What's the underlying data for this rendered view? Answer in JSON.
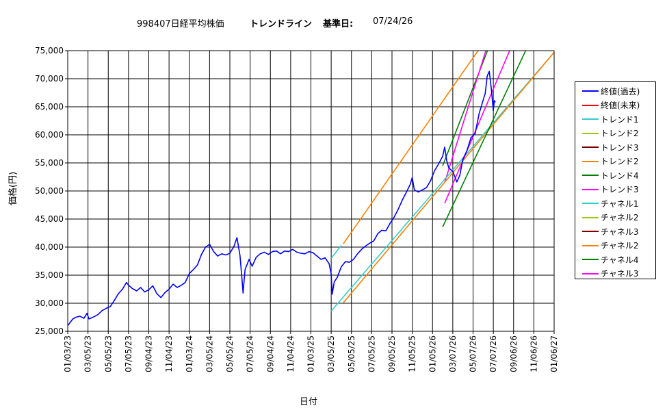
{
  "title": {
    "code_name": "998407日経平均株価",
    "subtitle": "トレンドライン",
    "base_label": "基準日:",
    "base_date": "07/24/26"
  },
  "chart_data": {
    "type": "line",
    "xlabel": "日付",
    "ylabel": "価格(円)",
    "ylim": [
      25000,
      75000
    ],
    "ytick_step": 5000,
    "y_tick_labels": [
      "25,000",
      "30,000",
      "35,000",
      "40,000",
      "45,000",
      "50,000",
      "55,000",
      "60,000",
      "65,000",
      "70,000",
      "75,000"
    ],
    "x_tick_labels": [
      "01/03/23",
      "03/05/23",
      "05/05/23",
      "07/05/23",
      "09/04/23",
      "11/04/23",
      "01/03/24",
      "03/05/24",
      "05/05/24",
      "07/05/24",
      "09/04/24",
      "11/04/24",
      "01/03/25",
      "03/05/25",
      "05/05/25",
      "07/05/25",
      "09/05/25",
      "11/05/25",
      "01/05/26",
      "03/07/26",
      "05/07/26",
      "07/07/26",
      "09/06/26",
      "11/06/26",
      "01/06/27"
    ],
    "grid": true,
    "legend_position": "right",
    "series": [
      {
        "name": "終値(過去)",
        "color": "#0000ff",
        "points": [
          [
            0,
            26000
          ],
          [
            0.1,
            26500
          ],
          [
            0.25,
            27200
          ],
          [
            0.4,
            27500
          ],
          [
            0.6,
            27700
          ],
          [
            0.8,
            27300
          ],
          [
            0.95,
            28200
          ],
          [
            1.05,
            27200
          ],
          [
            1.3,
            27600
          ],
          [
            1.5,
            28000
          ],
          [
            1.7,
            28700
          ],
          [
            1.9,
            29100
          ],
          [
            2.1,
            29400
          ],
          [
            2.3,
            30500
          ],
          [
            2.5,
            31700
          ],
          [
            2.7,
            32500
          ],
          [
            2.9,
            33700
          ],
          [
            3.0,
            33200
          ],
          [
            3.2,
            32600
          ],
          [
            3.4,
            32200
          ],
          [
            3.6,
            32800
          ],
          [
            3.8,
            32000
          ],
          [
            4.0,
            32400
          ],
          [
            4.2,
            33100
          ],
          [
            4.4,
            31700
          ],
          [
            4.6,
            31000
          ],
          [
            4.8,
            31900
          ],
          [
            5.0,
            32500
          ],
          [
            5.2,
            33400
          ],
          [
            5.4,
            32800
          ],
          [
            5.6,
            33200
          ],
          [
            5.8,
            33700
          ],
          [
            6.0,
            35300
          ],
          [
            6.2,
            36000
          ],
          [
            6.4,
            36800
          ],
          [
            6.6,
            38700
          ],
          [
            6.8,
            40000
          ],
          [
            7.0,
            40500
          ],
          [
            7.2,
            39200
          ],
          [
            7.4,
            38400
          ],
          [
            7.6,
            38800
          ],
          [
            7.8,
            38600
          ],
          [
            8.0,
            38900
          ],
          [
            8.2,
            40100
          ],
          [
            8.35,
            41700
          ],
          [
            8.5,
            38500
          ],
          [
            8.6,
            34200
          ],
          [
            8.65,
            31800
          ],
          [
            8.75,
            36000
          ],
          [
            8.95,
            37800
          ],
          [
            9.1,
            36600
          ],
          [
            9.3,
            38200
          ],
          [
            9.5,
            38800
          ],
          [
            9.7,
            39100
          ],
          [
            9.9,
            38700
          ],
          [
            10.1,
            39200
          ],
          [
            10.3,
            39300
          ],
          [
            10.5,
            38800
          ],
          [
            10.7,
            39300
          ],
          [
            10.9,
            39200
          ],
          [
            11.1,
            39600
          ],
          [
            11.3,
            39100
          ],
          [
            11.5,
            38900
          ],
          [
            11.7,
            38800
          ],
          [
            11.9,
            39200
          ],
          [
            12.1,
            39000
          ],
          [
            12.3,
            38400
          ],
          [
            12.5,
            37800
          ],
          [
            12.7,
            38100
          ],
          [
            12.9,
            37000
          ],
          [
            13.0,
            35200
          ],
          [
            13.05,
            31600
          ],
          [
            13.15,
            33800
          ],
          [
            13.3,
            34600
          ],
          [
            13.5,
            36500
          ],
          [
            13.7,
            37400
          ],
          [
            13.9,
            37300
          ],
          [
            14.1,
            37800
          ],
          [
            14.3,
            38800
          ],
          [
            14.5,
            39600
          ],
          [
            14.7,
            40200
          ],
          [
            14.9,
            40700
          ],
          [
            15.1,
            41100
          ],
          [
            15.3,
            42400
          ],
          [
            15.5,
            43000
          ],
          [
            15.7,
            42900
          ],
          [
            15.9,
            44200
          ],
          [
            16.1,
            45300
          ],
          [
            16.3,
            46700
          ],
          [
            16.5,
            48300
          ],
          [
            16.7,
            49700
          ],
          [
            16.9,
            51200
          ],
          [
            17.0,
            52400
          ],
          [
            17.1,
            50200
          ],
          [
            17.3,
            49800
          ],
          [
            17.5,
            50200
          ],
          [
            17.7,
            50600
          ],
          [
            17.9,
            51800
          ],
          [
            18.1,
            53600
          ],
          [
            18.3,
            54800
          ],
          [
            18.5,
            56200
          ],
          [
            18.6,
            57800
          ],
          [
            18.7,
            55400
          ],
          [
            18.8,
            54100
          ],
          [
            19.0,
            53500
          ],
          [
            19.2,
            51600
          ],
          [
            19.35,
            52800
          ],
          [
            19.5,
            55700
          ],
          [
            19.7,
            57200
          ],
          [
            19.9,
            59500
          ],
          [
            20.1,
            60200
          ],
          [
            20.3,
            63800
          ],
          [
            20.5,
            66200
          ],
          [
            20.6,
            67400
          ],
          [
            20.7,
            70500
          ],
          [
            20.8,
            71300
          ],
          [
            20.9,
            68200
          ],
          [
            21.0,
            64300
          ],
          [
            21.05,
            66100
          ],
          [
            21.1,
            65800
          ]
        ]
      },
      {
        "name": "終値(未来)",
        "color": "#ff0000",
        "points": []
      },
      {
        "name": "トレンド1",
        "color": "#33cccc",
        "points": [
          [
            13.0,
            38000
          ],
          [
            13.5,
            40300
          ]
        ]
      },
      {
        "name": "トレンド2",
        "color": "#99cc00",
        "points": []
      },
      {
        "name": "トレンド3",
        "color": "#800000",
        "points": []
      },
      {
        "name": "トレンド2",
        "color": "#ff8000",
        "points": [
          [
            13.6,
            40600
          ],
          [
            20.4,
            75800
          ]
        ]
      },
      {
        "name": "トレンド4",
        "color": "#008000",
        "points": [
          [
            18.5,
            54500
          ],
          [
            20.8,
            75800
          ]
        ]
      },
      {
        "name": "トレンド3",
        "color": "#ff00ff",
        "points": [
          [
            18.6,
            51500
          ],
          [
            20.7,
            75800
          ]
        ]
      },
      {
        "name": "チャネル1",
        "color": "#33cccc",
        "points": [
          [
            13.0,
            28600
          ],
          [
            24,
            74700
          ]
        ]
      },
      {
        "name": "チャネル2",
        "color": "#99cc00",
        "points": []
      },
      {
        "name": "チャネル3",
        "color": "#800000",
        "points": []
      },
      {
        "name": "チャネル2",
        "color": "#ff8000",
        "points": [
          [
            13.6,
            30100
          ],
          [
            24,
            74700
          ]
        ]
      },
      {
        "name": "チャネル4",
        "color": "#008000",
        "points": [
          [
            18.5,
            43600
          ],
          [
            22.7,
            75800
          ]
        ]
      },
      {
        "name": "チャネル3",
        "color": "#ff00ff",
        "points": [
          [
            18.6,
            47800
          ],
          [
            21.9,
            75800
          ]
        ]
      }
    ]
  }
}
